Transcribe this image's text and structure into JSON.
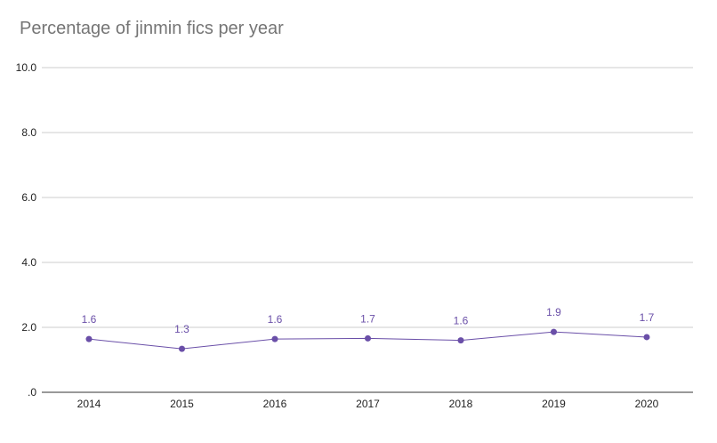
{
  "chart_data": {
    "type": "line",
    "title": "Percentage of jinmin fics per year",
    "xlabel": "",
    "ylabel": "",
    "categories": [
      "2014",
      "2015",
      "2016",
      "2017",
      "2018",
      "2019",
      "2020"
    ],
    "series": [
      {
        "name": "Percentage of jinmin fics",
        "values": [
          1.64,
          1.34,
          1.64,
          1.66,
          1.6,
          1.86,
          1.7
        ],
        "labels": [
          "1.6",
          "1.3",
          "1.6",
          "1.7",
          "1.6",
          "1.9",
          "1.7"
        ],
        "color": "#6a4fa8"
      }
    ],
    "ylim": [
      0,
      10
    ],
    "yticks": [
      0,
      2,
      4,
      6,
      8,
      10
    ],
    "ytick_labels": [
      ".0",
      "2.0",
      "4.0",
      "6.0",
      "8.0",
      "10.0"
    ],
    "grid": true,
    "colors": {
      "grid": "#cccccc",
      "axis": "#333333",
      "title": "#757575",
      "label": "#6a4fa8"
    }
  }
}
